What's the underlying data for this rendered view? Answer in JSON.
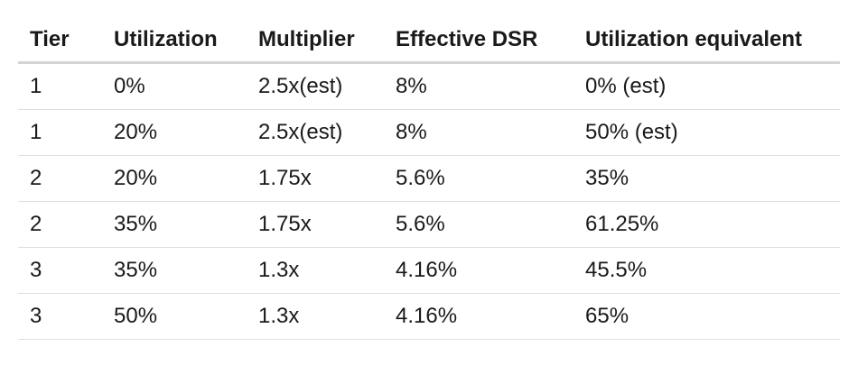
{
  "table": {
    "headers": [
      "Tier",
      "Utilization",
      "Multiplier",
      "Effective DSR",
      "Utilization equivalent"
    ],
    "rows": [
      [
        "1",
        "0%",
        "2.5x(est)",
        "8%",
        "0% (est)"
      ],
      [
        "1",
        "20%",
        "2.5x(est)",
        "8%",
        "50% (est)"
      ],
      [
        "2",
        "20%",
        "1.75x",
        "5.6%",
        "35%"
      ],
      [
        "2",
        "35%",
        "1.75x",
        "5.6%",
        "61.25%"
      ],
      [
        "3",
        "35%",
        "1.3x",
        "4.16%",
        "45.5%"
      ],
      [
        "3",
        "50%",
        "1.3x",
        "4.16%",
        "65%"
      ]
    ]
  }
}
